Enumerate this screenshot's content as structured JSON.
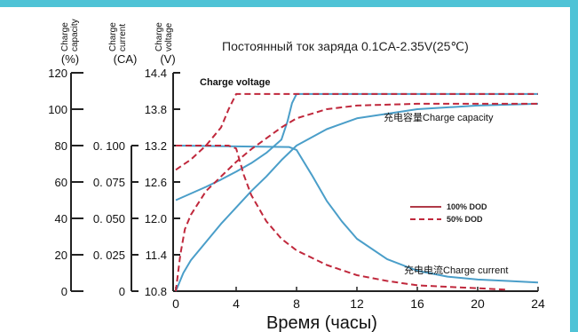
{
  "chart_data": {
    "type": "line",
    "title": "Постоянный ток заряда 0.1CA-2.35V(25℃)",
    "xlabel": "Время (часы)",
    "x_ticks": [
      "0",
      "4",
      "8",
      "12",
      "16",
      "20",
      "24"
    ],
    "xlim": [
      0,
      24
    ],
    "axes": [
      {
        "key": "capacity",
        "label_lines": [
          "Charge",
          "capacity"
        ],
        "unit": "(%)",
        "ticks": [
          "120",
          "100",
          "80",
          "60",
          "40",
          "20",
          "0"
        ],
        "range": [
          0,
          120
        ]
      },
      {
        "key": "current",
        "label_lines": [
          "Charge",
          "current"
        ],
        "unit": "(CA)",
        "ticks": [
          "0. 100",
          "0. 075",
          "0. 050",
          "0. 025",
          "0"
        ],
        "range": [
          0,
          0.15
        ]
      },
      {
        "key": "voltage",
        "label_lines": [
          "Charge",
          "voltage"
        ],
        "unit": "(V)",
        "ticks": [
          "14.4",
          "13.8",
          "13.2",
          "12.6",
          "12.0",
          "11.4",
          "10.8"
        ],
        "range": [
          10.8,
          14.4
        ]
      }
    ],
    "annotations": [
      {
        "key": "voltage",
        "text": "Charge voltage"
      },
      {
        "key": "capacity",
        "text": "充电容量Charge  capacity"
      },
      {
        "key": "current",
        "text": "充电电流Charge  current"
      }
    ],
    "legend": {
      "position": "center-right",
      "entries": [
        {
          "label": "100% DOD",
          "style": "solid",
          "color": "#b03a48"
        },
        {
          "label": "50% DOD",
          "style": "dashed",
          "color": "#c0283c"
        }
      ]
    },
    "colors": {
      "full_dod": "#4a9ec9",
      "half_dod": "#c0283c",
      "accent_bar": "#4fc3d6"
    },
    "series": [
      {
        "dod": "100%",
        "quantity": "voltage",
        "axis": "voltage",
        "x": [
          0,
          1,
          2,
          3,
          4,
          5,
          6,
          7,
          7.4,
          7.7,
          8,
          10,
          16,
          24
        ],
        "y": [
          12.3,
          12.41,
          12.52,
          12.64,
          12.77,
          12.91,
          13.08,
          13.3,
          13.6,
          13.9,
          14.05,
          14.05,
          14.05,
          14.05
        ]
      },
      {
        "dod": "100%",
        "quantity": "current",
        "axis": "current",
        "x": [
          0,
          7.5,
          8,
          9,
          10,
          11,
          12,
          14,
          16,
          18,
          20,
          22,
          24
        ],
        "y": [
          0.1,
          0.099,
          0.097,
          0.08,
          0.062,
          0.048,
          0.036,
          0.022,
          0.014,
          0.01,
          0.008,
          0.007,
          0.006
        ]
      },
      {
        "dod": "100%",
        "quantity": "capacity",
        "axis": "capacity",
        "x": [
          0,
          0.5,
          1,
          2,
          3,
          4,
          5,
          6,
          7,
          8,
          10,
          12,
          16,
          20,
          24
        ],
        "y": [
          0,
          10,
          17,
          27,
          37,
          46,
          55,
          63,
          72,
          80,
          89,
          95,
          100,
          102,
          103
        ]
      },
      {
        "dod": "50%",
        "quantity": "voltage",
        "axis": "voltage",
        "x": [
          0,
          1,
          2,
          3,
          3.5,
          4,
          4.2,
          8,
          24
        ],
        "y": [
          12.8,
          12.97,
          13.2,
          13.5,
          13.8,
          14.05,
          14.05,
          14.05,
          14.05
        ]
      },
      {
        "dod": "50%",
        "quantity": "current",
        "axis": "current",
        "x": [
          0,
          3.5,
          4,
          4.5,
          5,
          6,
          7,
          8,
          10,
          12,
          14,
          16,
          18,
          20,
          22
        ],
        "y": [
          0.1,
          0.1,
          0.098,
          0.08,
          0.066,
          0.048,
          0.036,
          0.028,
          0.018,
          0.011,
          0.007,
          0.004,
          0.003,
          0.002,
          0.001
        ]
      },
      {
        "dod": "50%",
        "quantity": "capacity",
        "axis": "capacity",
        "x": [
          0,
          0.3,
          0.6,
          1,
          2,
          3,
          4,
          5,
          6,
          7,
          8,
          10,
          12,
          16,
          20,
          24
        ],
        "y": [
          0,
          20,
          34,
          42,
          55,
          63,
          71,
          78,
          84,
          90,
          95,
          100,
          102,
          103,
          103,
          103
        ]
      }
    ]
  }
}
